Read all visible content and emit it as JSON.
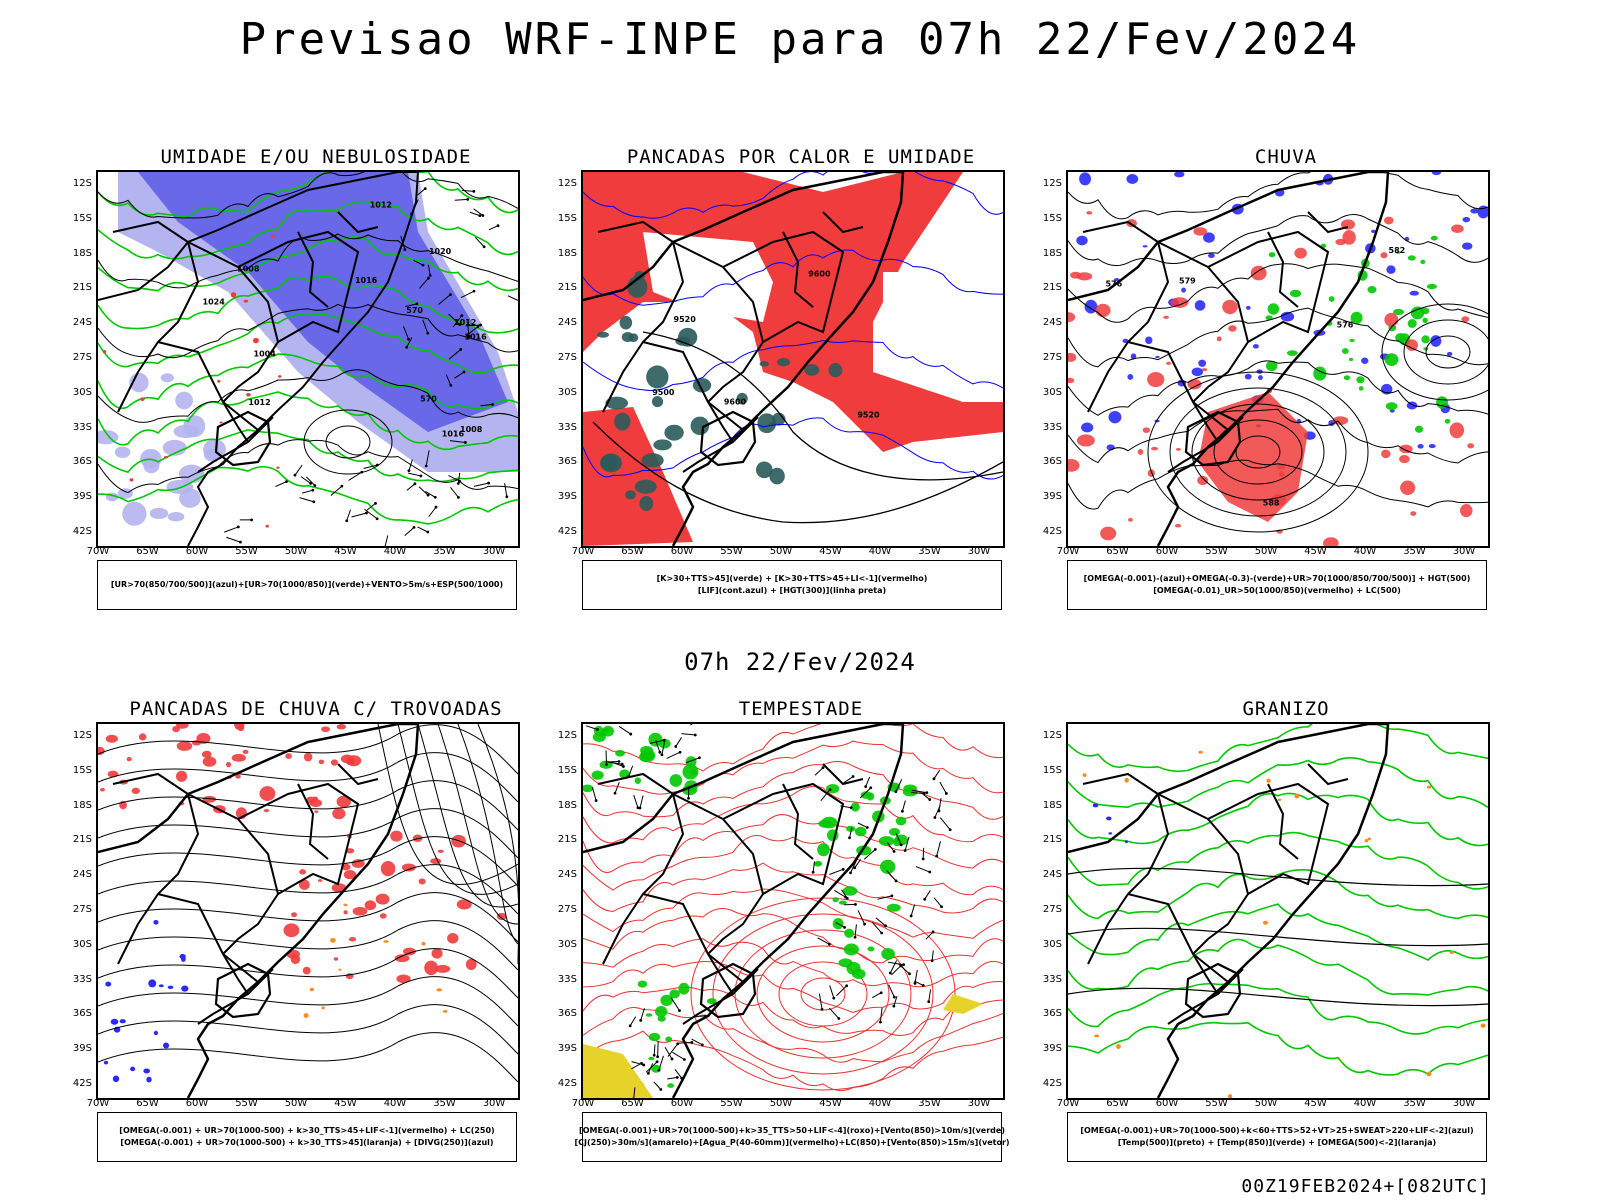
{
  "header": {
    "title": "Previsao WRF-INPE  para 07h 22/Fev/2024",
    "mid_title": "07h 22/Fev/2024",
    "run_stamp": "00Z19FEB2024+[082UTC]"
  },
  "axes": {
    "lat_ticks": [
      "12S",
      "15S",
      "18S",
      "21S",
      "24S",
      "27S",
      "30S",
      "33S",
      "36S",
      "39S",
      "42S"
    ],
    "lon_ticks": [
      "70W",
      "65W",
      "60W",
      "55W",
      "50W",
      "45W",
      "40W",
      "35W",
      "30W"
    ]
  },
  "colors": {
    "blue_shade": "#5a5ae6",
    "light_blue_shade": "#b4b4f0",
    "green_contour": "#00c800",
    "red_fill": "#f03c3c",
    "dark_teal": "#2a5a5a",
    "orange": "#ff8c1a",
    "yellow": "#e6d228",
    "contour_black": "#000000"
  },
  "panels": [
    {
      "title": "UMIDADE E/OU NEBULOSIDADE",
      "legend": [
        "[UR>70(850/700/500)](azul)+[UR>70(1000/850)](verde)+VENTO>5m/s+ESP(500/1000)"
      ],
      "contour_labels": [
        "1008",
        "1012",
        "1016",
        "1016",
        "1004",
        "1008",
        "1012",
        "1012",
        "1016",
        "1020",
        "1024",
        "570",
        "570"
      ]
    },
    {
      "title": "PANCADAS POR CALOR E UMIDADE",
      "legend": [
        "[K>30+TTS>45](verde) + [K>30+TTS>45+LI<-1](vermelho)",
        "[LIF](cont.azul) + [HGT(300)](linha preta)"
      ],
      "contour_labels": [
        "9600",
        "9520",
        "9600",
        "9500",
        "9520"
      ]
    },
    {
      "title": "CHUVA",
      "legend": [
        "[OMEGA(-0.001)-(azul)+OMEGA(-0.3)-(verde)+UR>70(1000/850/700/500)] + HGT(500)",
        "[OMEGA(-0.01)_UR>50(1000/850)(vermelho) + LC(500)"
      ],
      "contour_labels": [
        "576",
        "579",
        "576",
        "588",
        "582"
      ]
    },
    {
      "title": "PANCADAS DE CHUVA C/ TROVOADAS",
      "legend": [
        "[OMEGA(-0.001) + UR>70(1000-500) + k>30_TTS>45+LIF<-1](vermelho) + LC(250)",
        "[OMEGA(-0.001) + UR>70(1000-500) + k>30_TTS>45](laranja) + [DIVG(250)](azul)"
      ],
      "contour_labels": []
    },
    {
      "title": "TEMPESTADE",
      "legend": [
        "[OMEGA(-0.001)+UR>70(1000-500)+k>35_TTS>50+LIF<-4](roxo)+[Vento(850)>10m/s](verde)",
        "[CJ(250)>30m/s](amarelo)+[Agua_P(40-60mm)](vermelho)+LC(850)+[Vento(850)>15m/s](vetor)"
      ],
      "contour_labels": []
    },
    {
      "title": "GRANIZO",
      "legend": [
        "[OMEGA(-0.001)+UR>70(1000-500)+k<60+TTS>52+VT>25+SWEAT>220+LIF<-2](azul)",
        "[Temp(500)](preto) + [Temp(850)](verde) + [OMEGA(500)<-2](laranja)"
      ],
      "contour_labels": []
    }
  ]
}
